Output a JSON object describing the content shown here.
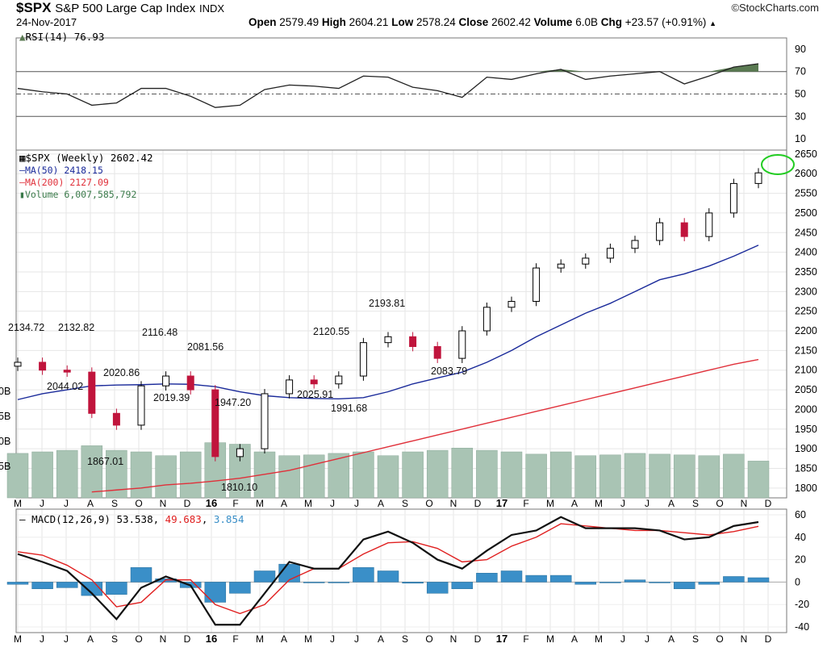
{
  "header": {
    "symbol": "$SPX",
    "name": "S&P 500 Large Cap Index",
    "exchange": "INDX",
    "date": "24-Nov-2017",
    "brand": "©StockCharts.com",
    "quote": {
      "open_label": "Open",
      "open": "2579.49",
      "high_label": "High",
      "high": "2604.21",
      "low_label": "Low",
      "low": "2578.24",
      "close_label": "Close",
      "close": "2602.42",
      "volume_label": "Volume",
      "volume": "6.0B",
      "chg_label": "Chg",
      "chg": "+23.57 (+0.91%)",
      "chg_arrow_icon": "up-triangle-icon"
    }
  },
  "legends": {
    "rsi": "RSI(14) 76.93",
    "price": "$SPX (Weekly) 2602.42",
    "ma50": "MA(50) 2418.15",
    "ma200": "MA(200) 2127.09",
    "volume": "Volume 6,007,585,792",
    "macd_label": "MACD(12,26,9)",
    "macd_value": "53.538",
    "macd_signal": "49.683",
    "macd_hist": "3.854"
  },
  "colors": {
    "up_candle": "#ffffff",
    "down_candle": "#c0143c",
    "ma50": "#1a2a9a",
    "ma200": "#e0303a",
    "volume": "#a9c4b4",
    "rsi_fill": "#5a7a52",
    "macd_line": "#111111",
    "signal_line": "#e02020",
    "histogram": "#3a8fc8",
    "highlight_ellipse": "#22cc22"
  },
  "chart_data": [
    {
      "type": "line",
      "title": "RSI(14) 76.93",
      "yticks": [
        10,
        30,
        50,
        70,
        90
      ],
      "ylim": [
        0,
        100
      ],
      "reference_lines": [
        30,
        50,
        70
      ],
      "x": [
        "2015-05",
        "2015-06",
        "2015-07",
        "2015-08",
        "2015-09",
        "2015-10",
        "2015-11",
        "2015-12",
        "2016-01",
        "2016-02",
        "2016-03",
        "2016-04",
        "2016-05",
        "2016-06",
        "2016-07",
        "2016-08",
        "2016-09",
        "2016-10",
        "2016-11",
        "2016-12",
        "2017-01",
        "2017-02",
        "2017-03",
        "2017-04",
        "2017-05",
        "2017-06",
        "2017-07",
        "2017-08",
        "2017-09",
        "2017-10",
        "2017-11"
      ],
      "series": [
        {
          "name": "RSI(14)",
          "values": [
            55,
            52,
            50,
            40,
            42,
            55,
            55,
            48,
            38,
            40,
            54,
            58,
            57,
            55,
            66,
            65,
            56,
            53,
            47,
            65,
            63,
            68,
            72,
            63,
            66,
            68,
            70,
            59,
            66,
            74,
            77
          ]
        }
      ]
    },
    {
      "type": "candlestick",
      "title": "$SPX (Weekly) 2602.42",
      "ylim": [
        1775,
        2660
      ],
      "yticks": [
        1800,
        1850,
        1900,
        1950,
        2000,
        2050,
        2100,
        2150,
        2200,
        2250,
        2300,
        2350,
        2400,
        2450,
        2500,
        2550,
        2600,
        2650
      ],
      "x_labels": [
        "M",
        "J",
        "J",
        "A",
        "S",
        "O",
        "N",
        "D",
        "16",
        "F",
        "M",
        "A",
        "M",
        "J",
        "J",
        "A",
        "S",
        "O",
        "N",
        "D",
        "17",
        "F",
        "M",
        "A",
        "M",
        "J",
        "J",
        "A",
        "S",
        "O",
        "N",
        "D"
      ],
      "x": [
        "2015-05",
        "2015-06",
        "2015-07",
        "2015-08",
        "2015-09",
        "2015-10",
        "2015-11",
        "2015-12",
        "2016-01",
        "2016-02",
        "2016-03",
        "2016-04",
        "2016-05",
        "2016-06",
        "2016-07",
        "2016-08",
        "2016-09",
        "2016-10",
        "2016-11",
        "2016-12",
        "2017-01",
        "2017-02",
        "2017-03",
        "2017-04",
        "2017-05",
        "2017-06",
        "2017-07",
        "2017-08",
        "2017-09",
        "2017-10",
        "2017-11"
      ],
      "series": [
        {
          "name": "$SPX (Weekly)",
          "values": [
            2120,
            2100,
            2095,
            1990,
            1960,
            2060,
            2085,
            2050,
            1880,
            1900,
            2040,
            2075,
            2065,
            2085,
            2170,
            2185,
            2160,
            2130,
            2200,
            2260,
            2275,
            2360,
            2370,
            2385,
            2410,
            2430,
            2475,
            2440,
            2500,
            2575,
            2602
          ]
        },
        {
          "name": "MA(50) 2418.15",
          "values": [
            2025,
            2040,
            2050,
            2060,
            2062,
            2063,
            2065,
            2064,
            2058,
            2045,
            2035,
            2030,
            2028,
            2027,
            2030,
            2045,
            2065,
            2080,
            2095,
            2120,
            2150,
            2185,
            2215,
            2245,
            2270,
            2300,
            2330,
            2345,
            2365,
            2390,
            2418
          ]
        },
        {
          "name": "MA(200) 2127.09",
          "values": [
            1780,
            1782,
            1785,
            1790,
            1795,
            1800,
            1808,
            1812,
            1818,
            1825,
            1835,
            1845,
            1860,
            1875,
            1890,
            1905,
            1920,
            1935,
            1950,
            1965,
            1980,
            1995,
            2010,
            2025,
            2040,
            2055,
            2070,
            2085,
            2100,
            2115,
            2127
          ]
        }
      ],
      "annotations": [
        {
          "label": "2134.72",
          "value": 2134.72
        },
        {
          "label": "2132.82",
          "value": 2132.82
        },
        {
          "label": "2044.02",
          "value": 2044.02
        },
        {
          "label": "2020.86",
          "value": 2020.86
        },
        {
          "label": "2116.48",
          "value": 2116.48
        },
        {
          "label": "2081.56",
          "value": 2081.56
        },
        {
          "label": "2019.39",
          "value": 2019.39
        },
        {
          "label": "1867.01",
          "value": 1867.01
        },
        {
          "label": "1947.20",
          "value": 1947.2
        },
        {
          "label": "1810.10",
          "value": 1810.1
        },
        {
          "label": "2120.55",
          "value": 2120.55
        },
        {
          "label": "2025.91",
          "value": 2025.91
        },
        {
          "label": "1991.68",
          "value": 1991.68
        },
        {
          "label": "2193.81",
          "value": 2193.81
        },
        {
          "label": "2083.79",
          "value": 2083.79
        }
      ],
      "volume_axis_labels": [
        "0B",
        "5B",
        "0B",
        "5B"
      ]
    },
    {
      "type": "line",
      "title": "MACD(12,26,9) 53.538, 49.683, 3.854",
      "ylim": [
        -45,
        65
      ],
      "yticks": [
        -40,
        -20,
        0,
        20,
        40,
        60
      ],
      "x": [
        "2015-05",
        "2015-06",
        "2015-07",
        "2015-08",
        "2015-09",
        "2015-10",
        "2015-11",
        "2015-12",
        "2016-01",
        "2016-02",
        "2016-03",
        "2016-04",
        "2016-05",
        "2016-06",
        "2016-07",
        "2016-08",
        "2016-09",
        "2016-10",
        "2016-11",
        "2016-12",
        "2017-01",
        "2017-02",
        "2017-03",
        "2017-04",
        "2017-05",
        "2017-06",
        "2017-07",
        "2017-08",
        "2017-09",
        "2017-10",
        "2017-11"
      ],
      "series": [
        {
          "name": "MACD",
          "values": [
            25,
            18,
            10,
            -10,
            -33,
            -5,
            5,
            -3,
            -38,
            -38,
            -10,
            18,
            12,
            12,
            38,
            45,
            35,
            20,
            12,
            28,
            42,
            46,
            58,
            48,
            48,
            48,
            46,
            38,
            40,
            50,
            53.5
          ]
        },
        {
          "name": "Signal",
          "values": [
            27,
            24,
            15,
            2,
            -22,
            -18,
            2,
            2,
            -20,
            -28,
            -20,
            2,
            12,
            12,
            25,
            35,
            36,
            30,
            18,
            20,
            32,
            40,
            52,
            50,
            48,
            46,
            46,
            44,
            42,
            45,
            49.7
          ]
        },
        {
          "name": "Histogram",
          "values": [
            -2,
            -6,
            -5,
            -12,
            -11,
            13,
            3,
            -5,
            -18,
            -10,
            10,
            16,
            0,
            0,
            13,
            10,
            -1,
            -10,
            -6,
            8,
            10,
            6,
            6,
            -2,
            0,
            2,
            0,
            -6,
            -2,
            5,
            3.9
          ]
        }
      ]
    }
  ]
}
